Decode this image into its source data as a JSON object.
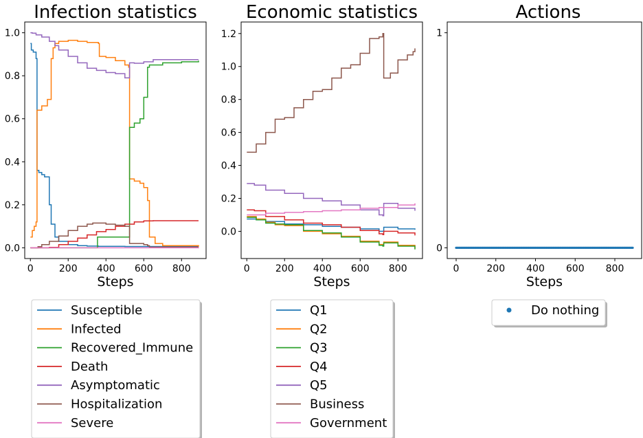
{
  "chart_data": [
    {
      "type": "line",
      "title": "Infection statistics",
      "xlabel": "Steps",
      "ylabel": "",
      "xlim": [
        -30,
        930
      ],
      "ylim": [
        -0.05,
        1.05
      ],
      "xticks": [
        0,
        200,
        400,
        600,
        800
      ],
      "xtick_labels": [
        "0",
        "200",
        "400",
        "600",
        "800"
      ],
      "yticks": [
        0.0,
        0.2,
        0.4,
        0.6,
        0.8,
        1.0
      ],
      "ytick_labels": [
        "0.0",
        "0.2",
        "0.4",
        "0.6",
        "0.8",
        "1.0"
      ],
      "grid": false,
      "legend_position": "below",
      "series": [
        {
          "name": "Susceptible",
          "color": "#1f77b4",
          "x": [
            0,
            5,
            15,
            30,
            35,
            45,
            60,
            75,
            100,
            110,
            130,
            150,
            200,
            250,
            300,
            360,
            500,
            600,
            890
          ],
          "y": [
            0.95,
            0.92,
            0.91,
            0.88,
            0.36,
            0.35,
            0.34,
            0.33,
            0.2,
            0.11,
            0.05,
            0.03,
            0.015,
            0.01,
            0.008,
            0.007,
            0.006,
            0.006,
            0.006
          ]
        },
        {
          "name": "Infected",
          "color": "#ff7f0e",
          "x": [
            0,
            10,
            20,
            30,
            35,
            60,
            90,
            110,
            120,
            130,
            150,
            200,
            250,
            300,
            360,
            365,
            400,
            450,
            500,
            520,
            525,
            550,
            580,
            600,
            620,
            630,
            660,
            700,
            890
          ],
          "y": [
            0.05,
            0.08,
            0.1,
            0.12,
            0.64,
            0.66,
            0.69,
            0.88,
            0.93,
            0.95,
            0.96,
            0.965,
            0.96,
            0.955,
            0.95,
            0.89,
            0.885,
            0.87,
            0.85,
            0.84,
            0.32,
            0.31,
            0.3,
            0.28,
            0.22,
            0.05,
            0.02,
            0.01,
            0.005
          ]
        },
        {
          "name": "Recovered_Immune",
          "color": "#2ca02c",
          "x": [
            0,
            350,
            355,
            400,
            450,
            520,
            525,
            550,
            580,
            600,
            620,
            630,
            700,
            800,
            890
          ],
          "y": [
            0.0,
            0.0,
            0.05,
            0.05,
            0.05,
            0.05,
            0.56,
            0.58,
            0.6,
            0.7,
            0.84,
            0.85,
            0.86,
            0.865,
            0.87
          ]
        },
        {
          "name": "Death",
          "color": "#d62728",
          "x": [
            0,
            100,
            150,
            200,
            250,
            300,
            350,
            400,
            450,
            500,
            550,
            600,
            650,
            700,
            890
          ],
          "y": [
            0.0,
            0.002,
            0.015,
            0.03,
            0.045,
            0.06,
            0.075,
            0.085,
            0.1,
            0.11,
            0.12,
            0.125,
            0.126,
            0.126,
            0.126
          ]
        },
        {
          "name": "Asymptomatic",
          "color": "#9467bd",
          "x": [
            0,
            10,
            30,
            60,
            100,
            130,
            150,
            200,
            250,
            300,
            350,
            400,
            450,
            500,
            520,
            525,
            550,
            580,
            600,
            650,
            700,
            890
          ],
          "y": [
            1.0,
            0.998,
            0.99,
            0.98,
            0.96,
            0.94,
            0.92,
            0.89,
            0.86,
            0.835,
            0.825,
            0.815,
            0.81,
            0.79,
            0.79,
            0.86,
            0.858,
            0.858,
            0.865,
            0.875,
            0.875,
            0.875
          ]
        },
        {
          "name": "Hospitalization",
          "color": "#8c564b",
          "x": [
            0,
            40,
            60,
            100,
            150,
            200,
            250,
            300,
            330,
            350,
            400,
            450,
            500,
            520,
            525,
            560,
            600,
            620,
            630,
            890
          ],
          "y": [
            0.0,
            0.005,
            0.015,
            0.03,
            0.055,
            0.08,
            0.1,
            0.11,
            0.115,
            0.115,
            0.11,
            0.105,
            0.1,
            0.1,
            0.02,
            0.02,
            0.015,
            0.01,
            0.003,
            0.003
          ]
        },
        {
          "name": "Severe",
          "color": "#e377c2",
          "x": [
            0,
            890
          ],
          "y": [
            0.0,
            0.002
          ]
        }
      ]
    },
    {
      "type": "line",
      "title": "Economic statistics",
      "xlabel": "Steps",
      "ylabel": "",
      "xlim": [
        -30,
        930
      ],
      "ylim": [
        -0.165,
        1.27
      ],
      "xticks": [
        0,
        200,
        400,
        600,
        800
      ],
      "xtick_labels": [
        "0",
        "200",
        "400",
        "600",
        "800"
      ],
      "yticks": [
        0.0,
        0.2,
        0.4,
        0.6,
        0.8,
        1.0,
        1.2
      ],
      "ytick_labels": [
        "0.0",
        "0.2",
        "0.4",
        "0.6",
        "0.8",
        "1.0",
        "1.2"
      ],
      "grid": false,
      "legend_position": "below",
      "series": [
        {
          "name": "Q1",
          "color": "#1f77b4",
          "x": [
            0,
            50,
            100,
            200,
            300,
            400,
            500,
            600,
            700,
            720,
            725,
            800,
            890
          ],
          "y": [
            0.075,
            0.07,
            0.06,
            0.045,
            0.04,
            0.03,
            0.025,
            0.015,
            0.0,
            0.0,
            0.025,
            0.015,
            0.01
          ]
        },
        {
          "name": "Q2",
          "color": "#ff7f0e",
          "x": [
            0,
            50,
            100,
            150,
            200,
            300,
            400,
            500,
            600,
            700,
            720,
            725,
            800,
            890
          ],
          "y": [
            0.09,
            0.075,
            0.055,
            0.04,
            0.035,
            0.0,
            -0.015,
            -0.03,
            -0.06,
            -0.08,
            -0.085,
            -0.065,
            -0.085,
            -0.105
          ]
        },
        {
          "name": "Q3",
          "color": "#2ca02c",
          "x": [
            0,
            50,
            100,
            150,
            200,
            300,
            400,
            500,
            600,
            700,
            720,
            725,
            800,
            890
          ],
          "y": [
            0.085,
            0.07,
            0.05,
            0.045,
            0.04,
            0.005,
            -0.01,
            -0.035,
            -0.065,
            -0.085,
            -0.09,
            -0.07,
            -0.09,
            -0.11
          ]
        },
        {
          "name": "Q4",
          "color": "#d62728",
          "x": [
            0,
            40,
            100,
            200,
            300,
            400,
            500,
            600,
            700,
            720,
            725,
            800,
            890
          ],
          "y": [
            0.13,
            0.125,
            0.09,
            0.07,
            0.05,
            0.04,
            0.025,
            0.005,
            -0.015,
            -0.02,
            0.0,
            -0.01,
            -0.025
          ]
        },
        {
          "name": "Q5",
          "color": "#9467bd",
          "x": [
            0,
            40,
            100,
            200,
            300,
            400,
            500,
            600,
            700,
            720,
            725,
            800,
            890
          ],
          "y": [
            0.29,
            0.28,
            0.25,
            0.23,
            0.2,
            0.185,
            0.16,
            0.13,
            0.1,
            0.095,
            0.17,
            0.14,
            0.125
          ]
        },
        {
          "name": "Business",
          "color": "#8c564b",
          "x": [
            0,
            30,
            50,
            100,
            150,
            200,
            250,
            300,
            350,
            400,
            450,
            500,
            550,
            600,
            650,
            700,
            720,
            725,
            760,
            800,
            850,
            880,
            890
          ],
          "y": [
            0.48,
            0.48,
            0.53,
            0.6,
            0.68,
            0.69,
            0.75,
            0.8,
            0.85,
            0.86,
            0.93,
            0.99,
            1.01,
            1.08,
            1.17,
            1.18,
            1.2,
            0.93,
            0.96,
            1.04,
            1.07,
            1.09,
            1.11
          ]
        },
        {
          "name": "Government",
          "color": "#e377c2",
          "x": [
            0,
            100,
            200,
            300,
            400,
            500,
            600,
            700,
            800,
            890
          ],
          "y": [
            0.1,
            0.11,
            0.115,
            0.12,
            0.125,
            0.13,
            0.14,
            0.145,
            0.16,
            0.17
          ]
        }
      ]
    },
    {
      "type": "scatter",
      "title": "Actions",
      "xlabel": "Steps",
      "ylabel": "",
      "xlim": [
        -45,
        935
      ],
      "ylim": [
        -0.05,
        1.05
      ],
      "xticks": [
        0,
        200,
        400,
        600,
        800
      ],
      "xtick_labels": [
        "0",
        "200",
        "400",
        "600",
        "800"
      ],
      "yticks": [
        0,
        1
      ],
      "ytick_labels": [
        "0",
        "1"
      ],
      "grid": false,
      "legend_position": "below",
      "series": [
        {
          "name": "Do nothing",
          "color": "#1f77b4",
          "x_range": [
            0,
            890
          ],
          "y": 0
        }
      ]
    }
  ]
}
